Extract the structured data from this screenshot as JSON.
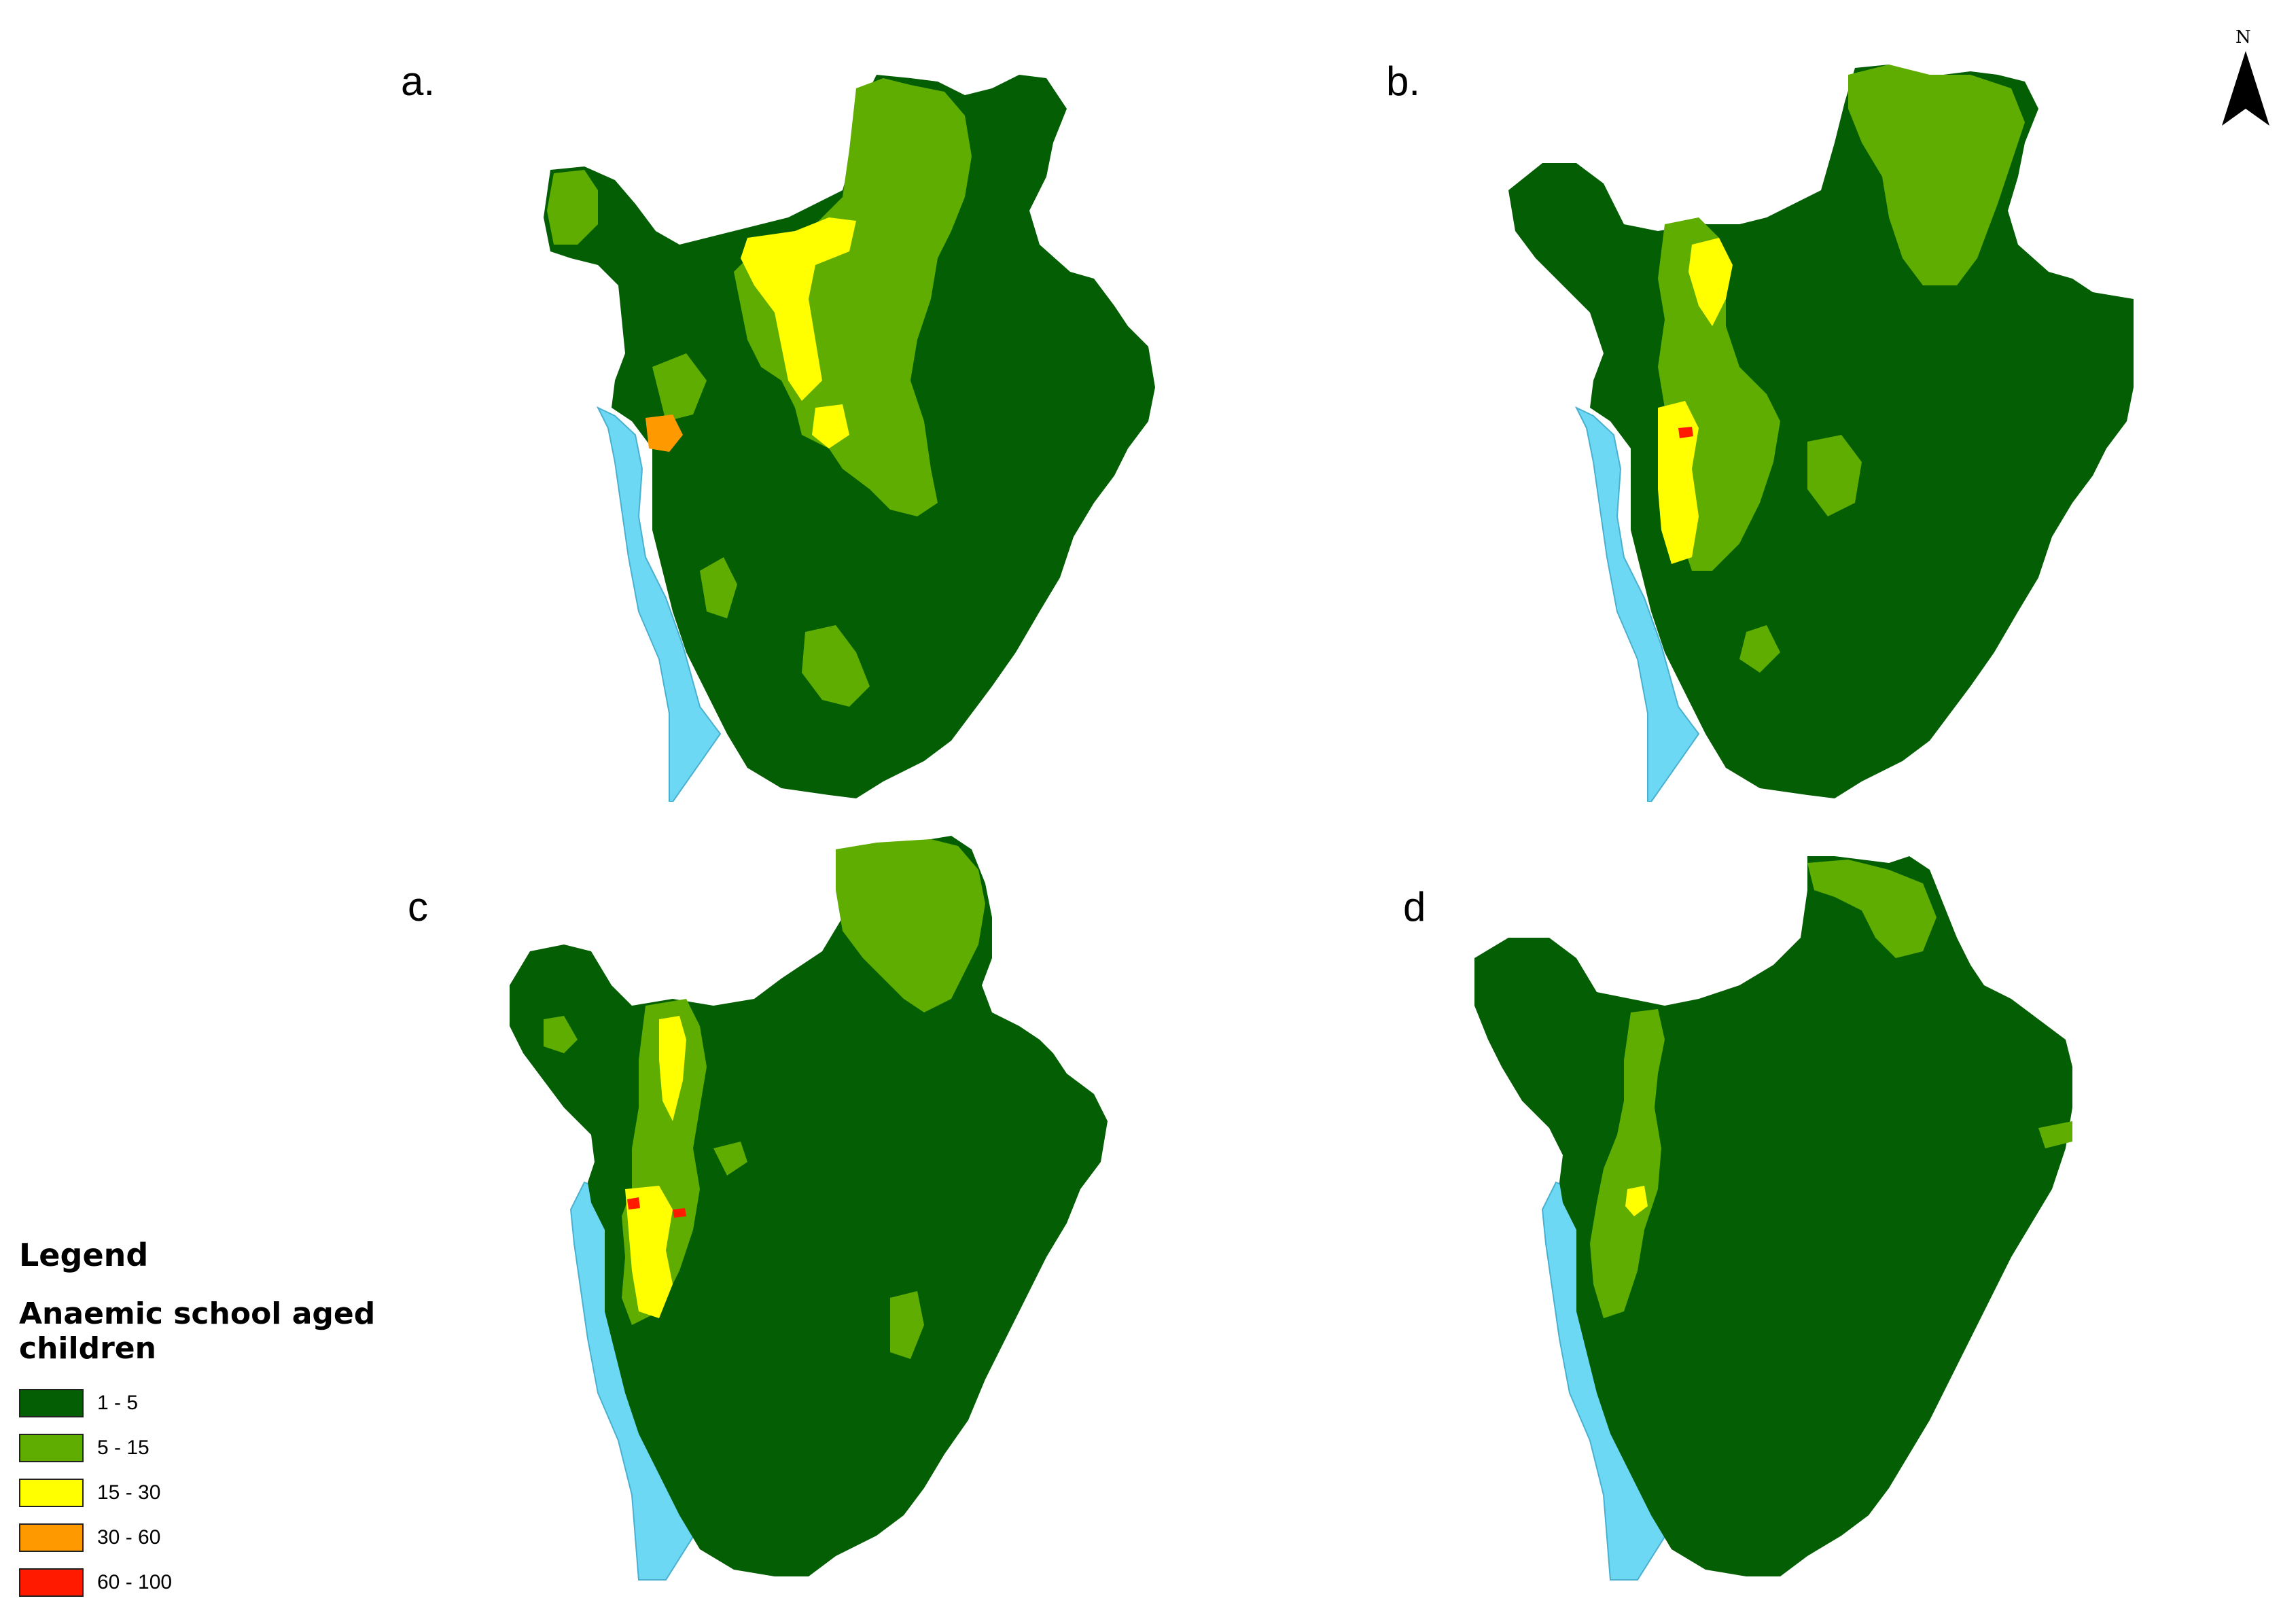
{
  "panels": [
    {
      "id": "a",
      "label": "a."
    },
    {
      "id": "b",
      "label": "b."
    },
    {
      "id": "c",
      "label": "c"
    },
    {
      "id": "d",
      "label": "d"
    }
  ],
  "north_arrow": {
    "letter": "N"
  },
  "legend": {
    "title": "Legend",
    "subtitle": "Anaemic school aged children",
    "items": [
      {
        "label": "1 - 5",
        "color": "#045e04"
      },
      {
        "label": "5 - 15",
        "color": "#5fad00"
      },
      {
        "label": "15 - 30",
        "color": "#ffff00"
      },
      {
        "label": "30 - 60",
        "color": "#ff9900"
      },
      {
        "label": "60 - 100",
        "color": "#ff1a00"
      }
    ]
  },
  "colors": {
    "water": "#6dd8f4",
    "class_1_5": "#045e04",
    "class_5_15": "#5fad00",
    "class_15_30": "#ffff00",
    "class_30_60": "#ff9900",
    "class_60_100": "#ff1a00"
  }
}
